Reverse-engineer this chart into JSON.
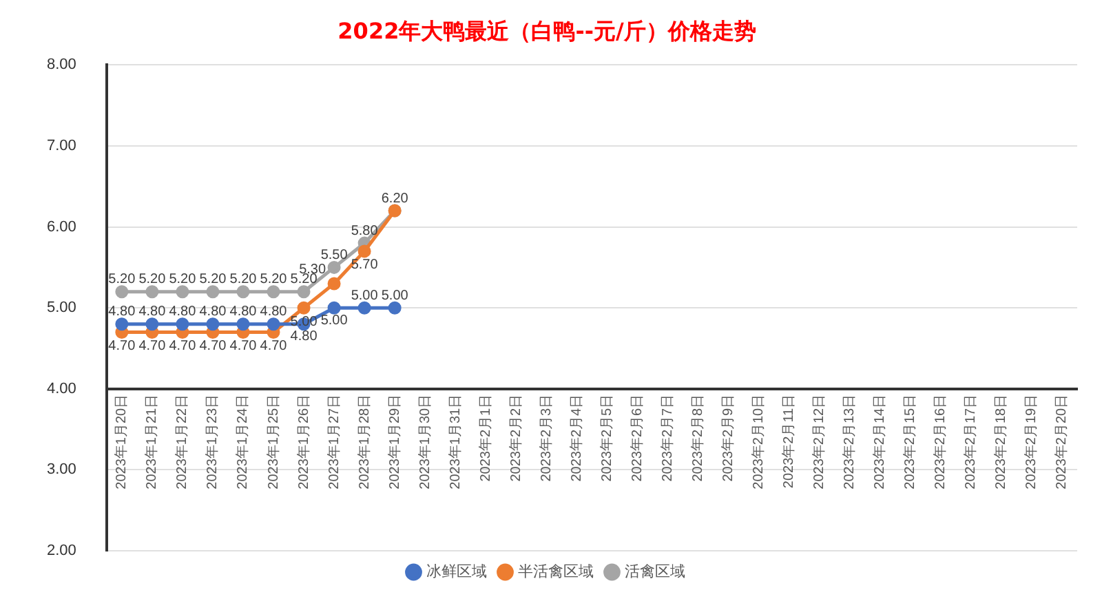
{
  "chart_data": {
    "type": "line",
    "title": "2022年大鸭最近（白鸭--元/斤）价格走势",
    "categories": [
      "2023年1月20日",
      "2023年1月21日",
      "2023年1月22日",
      "2023年1月23日",
      "2023年1月24日",
      "2023年1月25日",
      "2023年1月26日",
      "2023年1月27日",
      "2023年1月28日",
      "2023年1月29日",
      "2023年1月30日",
      "2023年1月31日",
      "2023年2月1日",
      "2023年2月2日",
      "2023年2月3日",
      "2023年2月4日",
      "2023年2月5日",
      "2023年2月6日",
      "2023年2月7日",
      "2023年2月8日",
      "2023年2月9日",
      "2023年2月10日",
      "2023年2月11日",
      "2023年2月12日",
      "2023年2月13日",
      "2023年2月14日",
      "2023年2月15日",
      "2023年2月16日",
      "2023年2月17日",
      "2023年2月18日",
      "2023年2月19日",
      "2023年2月20日"
    ],
    "series": [
      {
        "name": "冰鲜区域",
        "color": "#4472c4",
        "values": [
          4.8,
          4.8,
          4.8,
          4.8,
          4.8,
          4.8,
          4.8,
          5.0,
          5.0,
          5.0,
          null,
          null,
          null,
          null,
          null,
          null,
          null,
          null,
          null,
          null,
          null,
          null,
          null,
          null,
          null,
          null,
          null,
          null,
          null,
          null,
          null,
          null
        ],
        "value_labels": [
          "4.80",
          "4.80",
          "4.80",
          "4.80",
          "4.80",
          "4.80",
          "4.80",
          "5.00",
          "5.00",
          "5.00",
          null,
          null,
          null,
          null,
          null,
          null,
          null,
          null,
          null,
          null,
          null,
          null,
          null,
          null,
          null,
          null,
          null,
          null,
          null,
          null,
          null,
          null
        ]
      },
      {
        "name": "半活禽区域",
        "color": "#ed7d31",
        "values": [
          4.7,
          4.7,
          4.7,
          4.7,
          4.7,
          4.7,
          5.0,
          5.3,
          5.7,
          6.2,
          null,
          null,
          null,
          null,
          null,
          null,
          null,
          null,
          null,
          null,
          null,
          null,
          null,
          null,
          null,
          null,
          null,
          null,
          null,
          null,
          null,
          null
        ],
        "value_labels": [
          "4.70",
          "4.70",
          "4.70",
          "4.70",
          "4.70",
          "4.70",
          "5.00",
          "5.30",
          "5.70",
          null,
          null,
          null,
          null,
          null,
          null,
          null,
          null,
          null,
          null,
          null,
          null,
          null,
          null,
          null,
          null,
          null,
          null,
          null,
          null,
          null,
          null,
          null
        ]
      },
      {
        "name": "活禽区域",
        "color": "#a5a5a5",
        "values": [
          5.2,
          5.2,
          5.2,
          5.2,
          5.2,
          5.2,
          5.2,
          5.5,
          5.8,
          6.2,
          null,
          null,
          null,
          null,
          null,
          null,
          null,
          null,
          null,
          null,
          null,
          null,
          null,
          null,
          null,
          null,
          null,
          null,
          null,
          null,
          null,
          null
        ],
        "value_labels": [
          "5.20",
          "5.20",
          "5.20",
          "5.20",
          "5.20",
          "5.20",
          "5.20",
          "5.50",
          "5.80",
          "6.20",
          null,
          null,
          null,
          null,
          null,
          null,
          null,
          null,
          null,
          null,
          null,
          null,
          null,
          null,
          null,
          null,
          null,
          null,
          null,
          null,
          null,
          null
        ]
      }
    ],
    "ylim": [
      2,
      8
    ],
    "yticks": [
      {
        "value": 2,
        "label": "2.00"
      },
      {
        "value": 3,
        "label": "3.00"
      },
      {
        "value": 4,
        "label": "4.00"
      },
      {
        "value": 5,
        "label": "5.00"
      },
      {
        "value": 6,
        "label": "6.00"
      },
      {
        "value": 7,
        "label": "7.00"
      },
      {
        "value": 8,
        "label": "8.00"
      }
    ],
    "grid": "y",
    "legend": "bottom",
    "marker": "circle",
    "line_style": "solid"
  }
}
